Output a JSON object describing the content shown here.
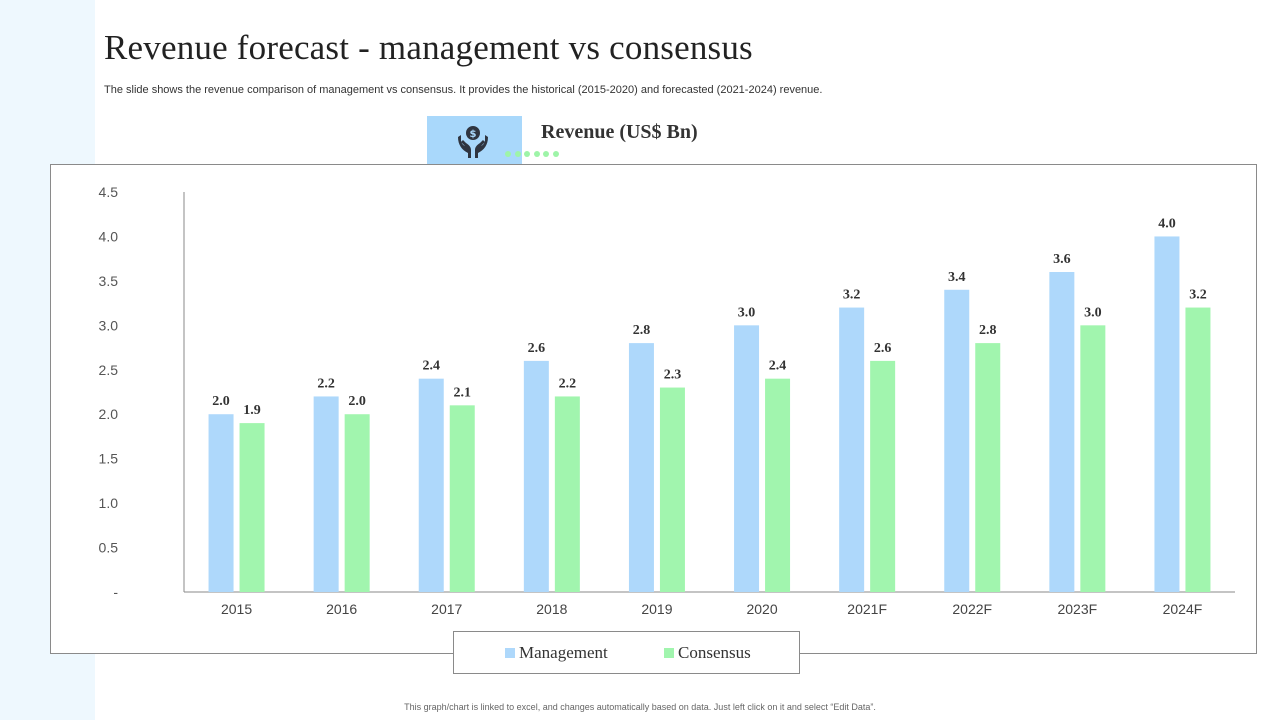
{
  "slide": {
    "title": "Revenue forecast - management vs consensus",
    "subtitle": "The slide shows the revenue comparison of management vs consensus. It provides the historical (2015-2020) and forecasted (2021-2024) revenue.",
    "chart_heading": "Revenue (US$ Bn)",
    "footnote": "This graph/chart is linked to excel, and changes automatically based on data. Just left click on it and select “Edit Data”.",
    "heading_icon": "money-hands-icon"
  },
  "colors": {
    "management": "#aed8fb",
    "consensus": "#a1f5ae",
    "side_strip": "#eef8fe",
    "icon_box": "#a9d8fb"
  },
  "chart_data": {
    "type": "bar",
    "title": "Revenue (US$ Bn)",
    "categories": [
      "2015",
      "2016",
      "2017",
      "2018",
      "2019",
      "2020",
      "2021F",
      "2022F",
      "2023F",
      "2024F"
    ],
    "series": [
      {
        "name": "Management",
        "values": [
          2.0,
          2.2,
          2.4,
          2.6,
          2.8,
          3.0,
          3.2,
          3.4,
          3.6,
          4.0
        ]
      },
      {
        "name": "Consensus",
        "values": [
          1.9,
          2.0,
          2.1,
          2.2,
          2.3,
          2.4,
          2.6,
          2.8,
          3.0,
          3.2
        ]
      }
    ],
    "ylim": [
      0,
      4.5
    ],
    "yticks": [
      0,
      0.5,
      1.0,
      1.5,
      2.0,
      2.5,
      3.0,
      3.5,
      4.0,
      4.5
    ],
    "ytick_labels": [
      "-",
      "0.5",
      "1.0",
      "1.5",
      "2.0",
      "2.5",
      "3.0",
      "3.5",
      "4.0",
      "4.5"
    ],
    "xlabel": "",
    "ylabel": "",
    "grid": false,
    "legend_position": "bottom"
  }
}
